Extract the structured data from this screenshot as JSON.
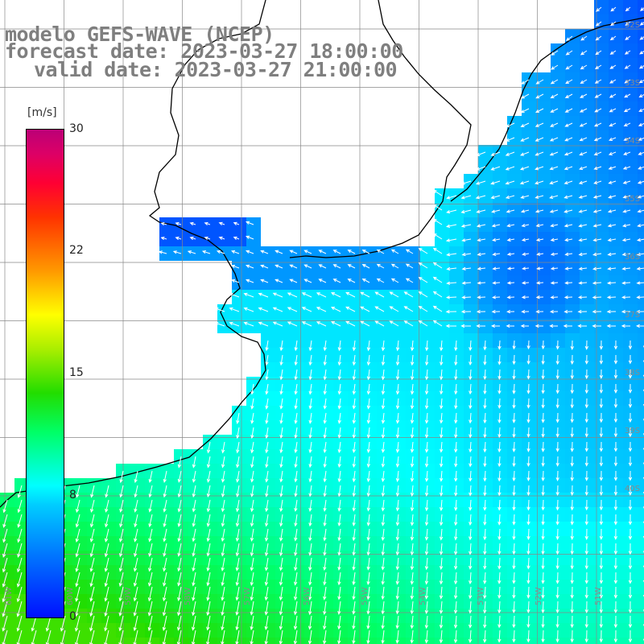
{
  "title": {
    "line1": "modelo GEFS-WAVE (NCEP)",
    "line2": "forecast date: 2023-03-27 18:00:00",
    "line3": "valid date: 2023-03-27 21:00:00"
  },
  "colorbar": {
    "unit": "[m/s]",
    "ticks": [
      "30",
      "22",
      "15",
      "8",
      "0"
    ],
    "range": [
      0,
      30
    ]
  },
  "map": {
    "lat_labels": [
      "32S",
      "33S",
      "34S",
      "35S",
      "36S",
      "37S",
      "38S",
      "39S",
      "40S"
    ],
    "lon_labels": [
      "61W",
      "60W",
      "59W",
      "58W",
      "57W",
      "56W",
      "55W",
      "54W",
      "53W",
      "52W",
      "51W"
    ],
    "colors": {
      "land": "#ffffff",
      "grid": "#888888",
      "coast": "#000000",
      "arrow": "#ffffff",
      "label": "#8a8a8a"
    }
  }
}
